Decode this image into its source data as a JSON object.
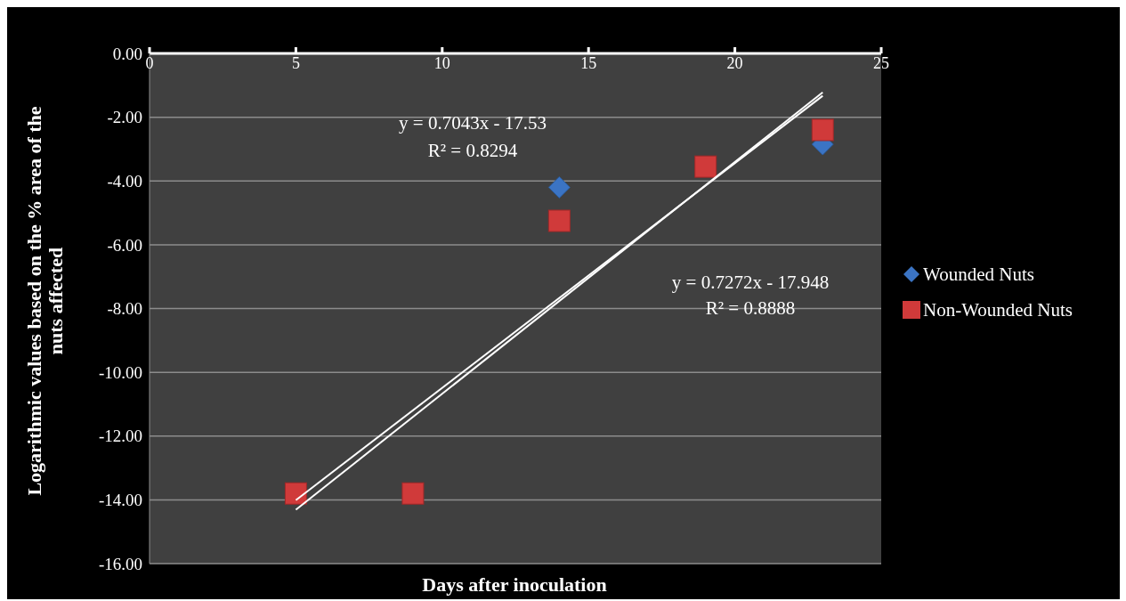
{
  "chart_data": {
    "type": "scatter",
    "xlabel": "Days after inoculation",
    "ylabel": "Logarithmic values based on the % area of the nuts affected",
    "xlim": [
      0,
      25
    ],
    "xticks": [
      0,
      5,
      10,
      15,
      20,
      25
    ],
    "ylim": [
      -16,
      0
    ],
    "yticks": [
      {
        "value": -16,
        "label": "-16.00"
      },
      {
        "value": -14,
        "label": "-14.00"
      },
      {
        "value": -12,
        "label": "-12.00"
      },
      {
        "value": -10,
        "label": "-10.00"
      },
      {
        "value": -8,
        "label": "-8.00"
      },
      {
        "value": -6,
        "label": "-6.00"
      },
      {
        "value": -4,
        "label": "-4.00"
      },
      {
        "value": -2,
        "label": "-2.00"
      },
      {
        "value": 0,
        "label": "0.00"
      }
    ],
    "grid": "y",
    "legend": "right",
    "series": [
      {
        "name": "Wounded Nuts",
        "type": "scatter",
        "marker": "diamond",
        "color": "#3b74c4",
        "x": [
          14,
          23
        ],
        "values": [
          -4.2,
          -2.85
        ]
      },
      {
        "name": "Non-Wounded Nuts",
        "type": "scatter",
        "marker": "square",
        "color": "#d03a3a",
        "x": [
          5,
          9,
          14,
          19,
          23
        ],
        "values": [
          -13.8,
          -13.8,
          -5.25,
          -3.55,
          -2.4
        ]
      },
      {
        "type": "line",
        "color": "#ffffff",
        "line_style": "solid",
        "x": [
          5,
          23
        ],
        "values": [
          -14.01,
          -1.33
        ]
      },
      {
        "type": "line",
        "color": "#ffffff",
        "line_style": "solid",
        "x": [
          5,
          23
        ],
        "values": [
          -14.31,
          -1.22
        ]
      }
    ],
    "annotations": [
      "y = 0.7043x - 17.53",
      "R² = 0.8294",
      "y = 0.7272x - 17.948",
      "R² = 0.8888"
    ]
  }
}
